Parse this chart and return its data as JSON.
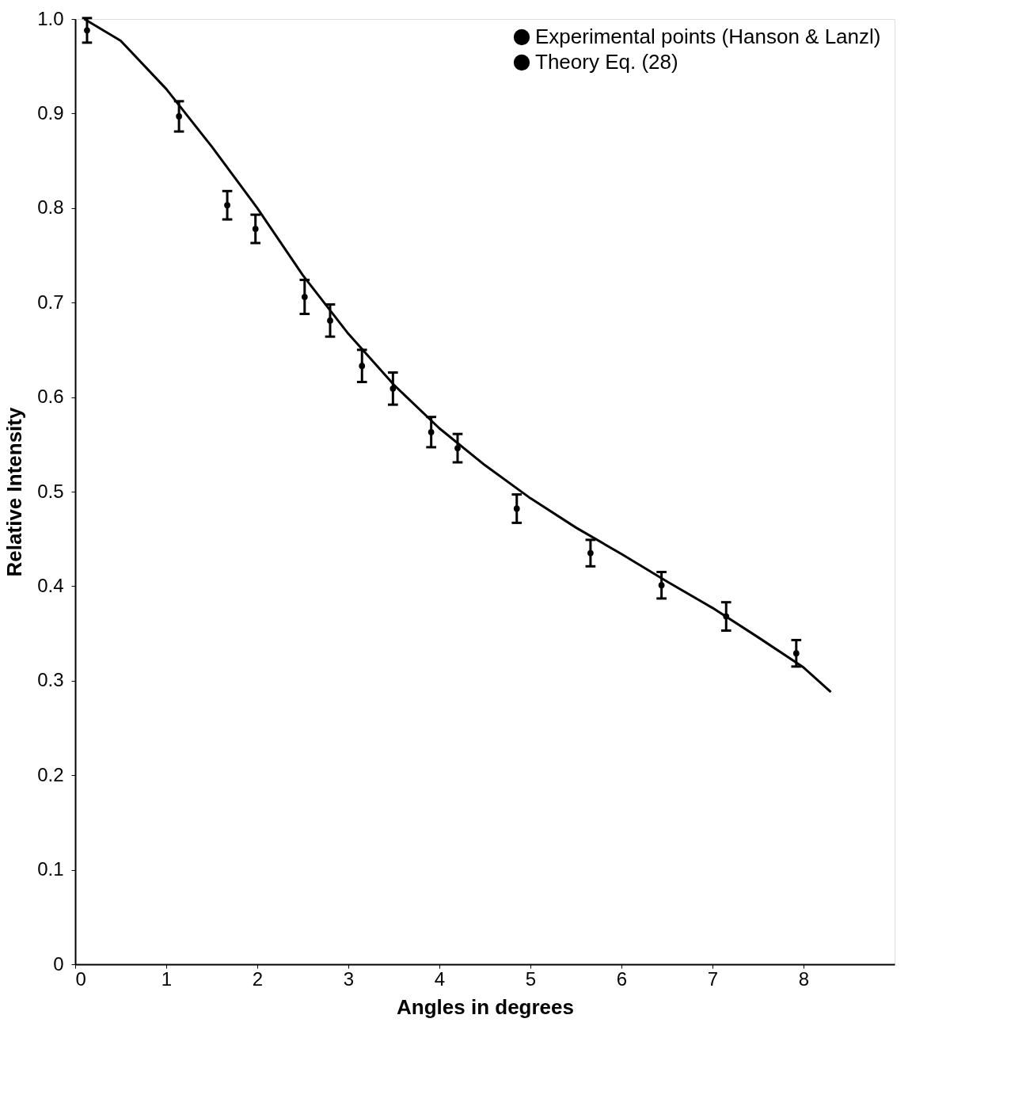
{
  "chart_data": {
    "type": "scatter",
    "xlabel": "Angles  in  degrees",
    "ylabel": "Relative  Intensity",
    "xlim": [
      0,
      9
    ],
    "xticks": [
      0,
      1,
      2,
      3,
      4,
      5,
      6,
      7,
      8
    ],
    "ylim": [
      0,
      1.0
    ],
    "yticks": [
      0,
      0.1,
      0.2,
      0.3,
      0.4,
      0.5,
      0.6,
      0.7,
      0.8,
      0.9,
      {
        "value": 1.0,
        "label": "1.0"
      }
    ],
    "grid": false,
    "legend": "top right",
    "series": [
      {
        "name": "Experimental points  (Hanson & Lanzl)",
        "marker": "circle",
        "color": "#000000",
        "x": [
          0.13,
          1.14,
          1.67,
          1.98,
          2.52,
          2.8,
          3.15,
          3.49,
          3.91,
          4.2,
          4.85,
          5.66,
          6.44,
          7.15,
          7.92
        ],
        "values": [
          0.988,
          0.897,
          0.803,
          0.778,
          0.706,
          0.681,
          0.633,
          0.609,
          0.563,
          0.546,
          0.482,
          0.435,
          0.401,
          0.368,
          0.329
        ],
        "errors": [
          0.013,
          0.016,
          0.015,
          0.015,
          0.018,
          0.017,
          0.017,
          0.017,
          0.016,
          0.015,
          0.015,
          0.014,
          0.014,
          0.015,
          0.014
        ]
      },
      {
        "name": "Theory Eq.  (28)",
        "type": "line",
        "color": "#000000",
        "line_style": "solid",
        "x": [
          0.1,
          0.5,
          1,
          1.5,
          2,
          2.5,
          3,
          3.5,
          4,
          4.5,
          5,
          5.5,
          6,
          6.5,
          7,
          7.5,
          8,
          8.3
        ],
        "values": [
          1.0,
          0.977,
          0.926,
          0.865,
          0.8,
          0.729,
          0.667,
          0.613,
          0.567,
          0.528,
          0.493,
          0.462,
          0.434,
          0.405,
          0.377,
          0.346,
          0.314,
          0.288
        ]
      }
    ]
  }
}
